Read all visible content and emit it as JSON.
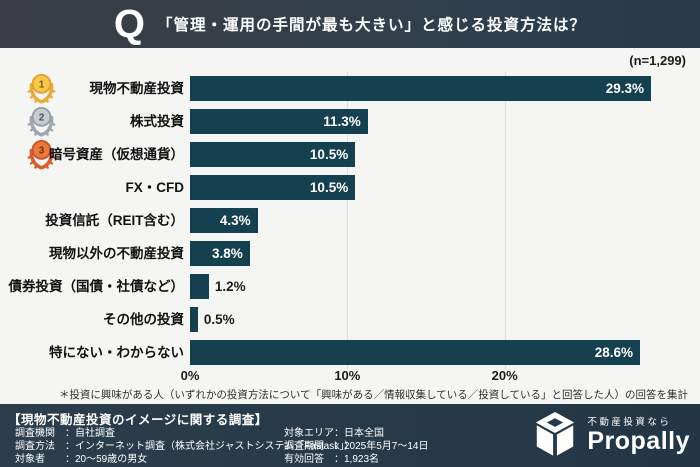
{
  "header": {
    "q_mark": "Q",
    "title": "「管理・運用の手間が最も大きい」と感じる投資方法は？"
  },
  "sample_size": "(n=1,299)",
  "chart_data": {
    "type": "bar",
    "orientation": "horizontal",
    "title": "「管理・運用の手間が最も大きい」と感じる投資方法は？",
    "categories": [
      "現物不動産投資",
      "株式投資",
      "暗号資産（仮想通貨）",
      "FX・CFD",
      "投資信託（REIT含む）",
      "現物以外の不動産投資",
      "債券投資（国債・社債など）",
      "その他の投資",
      "特にない・わからない"
    ],
    "values": [
      29.3,
      11.3,
      10.5,
      10.5,
      4.3,
      3.8,
      1.2,
      0.5,
      28.6
    ],
    "value_labels": [
      "29.3%",
      "11.3%",
      "10.5%",
      "10.5%",
      "4.3%",
      "3.8%",
      "1.2%",
      "0.5%",
      "28.6%"
    ],
    "x_ticks": [
      "0%",
      "10%",
      "20%"
    ],
    "x_tick_values": [
      0,
      10,
      20
    ],
    "xlim": [
      0,
      30
    ],
    "grid": true,
    "bar_color": "#15404f",
    "inside_label_threshold": 3,
    "medals": [
      {
        "rank": "1",
        "circle": "#F7C94B",
        "rim": "#E2A32F",
        "wreath": "#E8AC3C",
        "num": "#8A5414"
      },
      {
        "rank": "2",
        "circle": "#C8CDD3",
        "rim": "#979FA7",
        "wreath": "#9FA6AD",
        "num": "#4E545B"
      },
      {
        "rank": "3",
        "circle": "#E87A3C",
        "rim": "#C8552A",
        "wreath": "#D75D2C",
        "num": "#7C2E10"
      }
    ]
  },
  "footnote": "＊投資に興味がある人（いずれかの投資方法について「興味がある／情報収集している／投資している」と回答した人）の回答を集計",
  "footer": {
    "title": "【現物不動産投資のイメージに関する調査】",
    "left": [
      "調査機関　：自社調査",
      "調査方法　：インターネット調査（株式会社ジャストシステム「Fastask」）",
      "対象者　　：20～59歳の男女"
    ],
    "right": [
      "対象エリア：日本全国",
      "調査期間　：2025年5月7～14日",
      "有効回答　：1,923名"
    ],
    "logo": {
      "tagline": "不動産投資なら",
      "brand": "Propally"
    }
  }
}
